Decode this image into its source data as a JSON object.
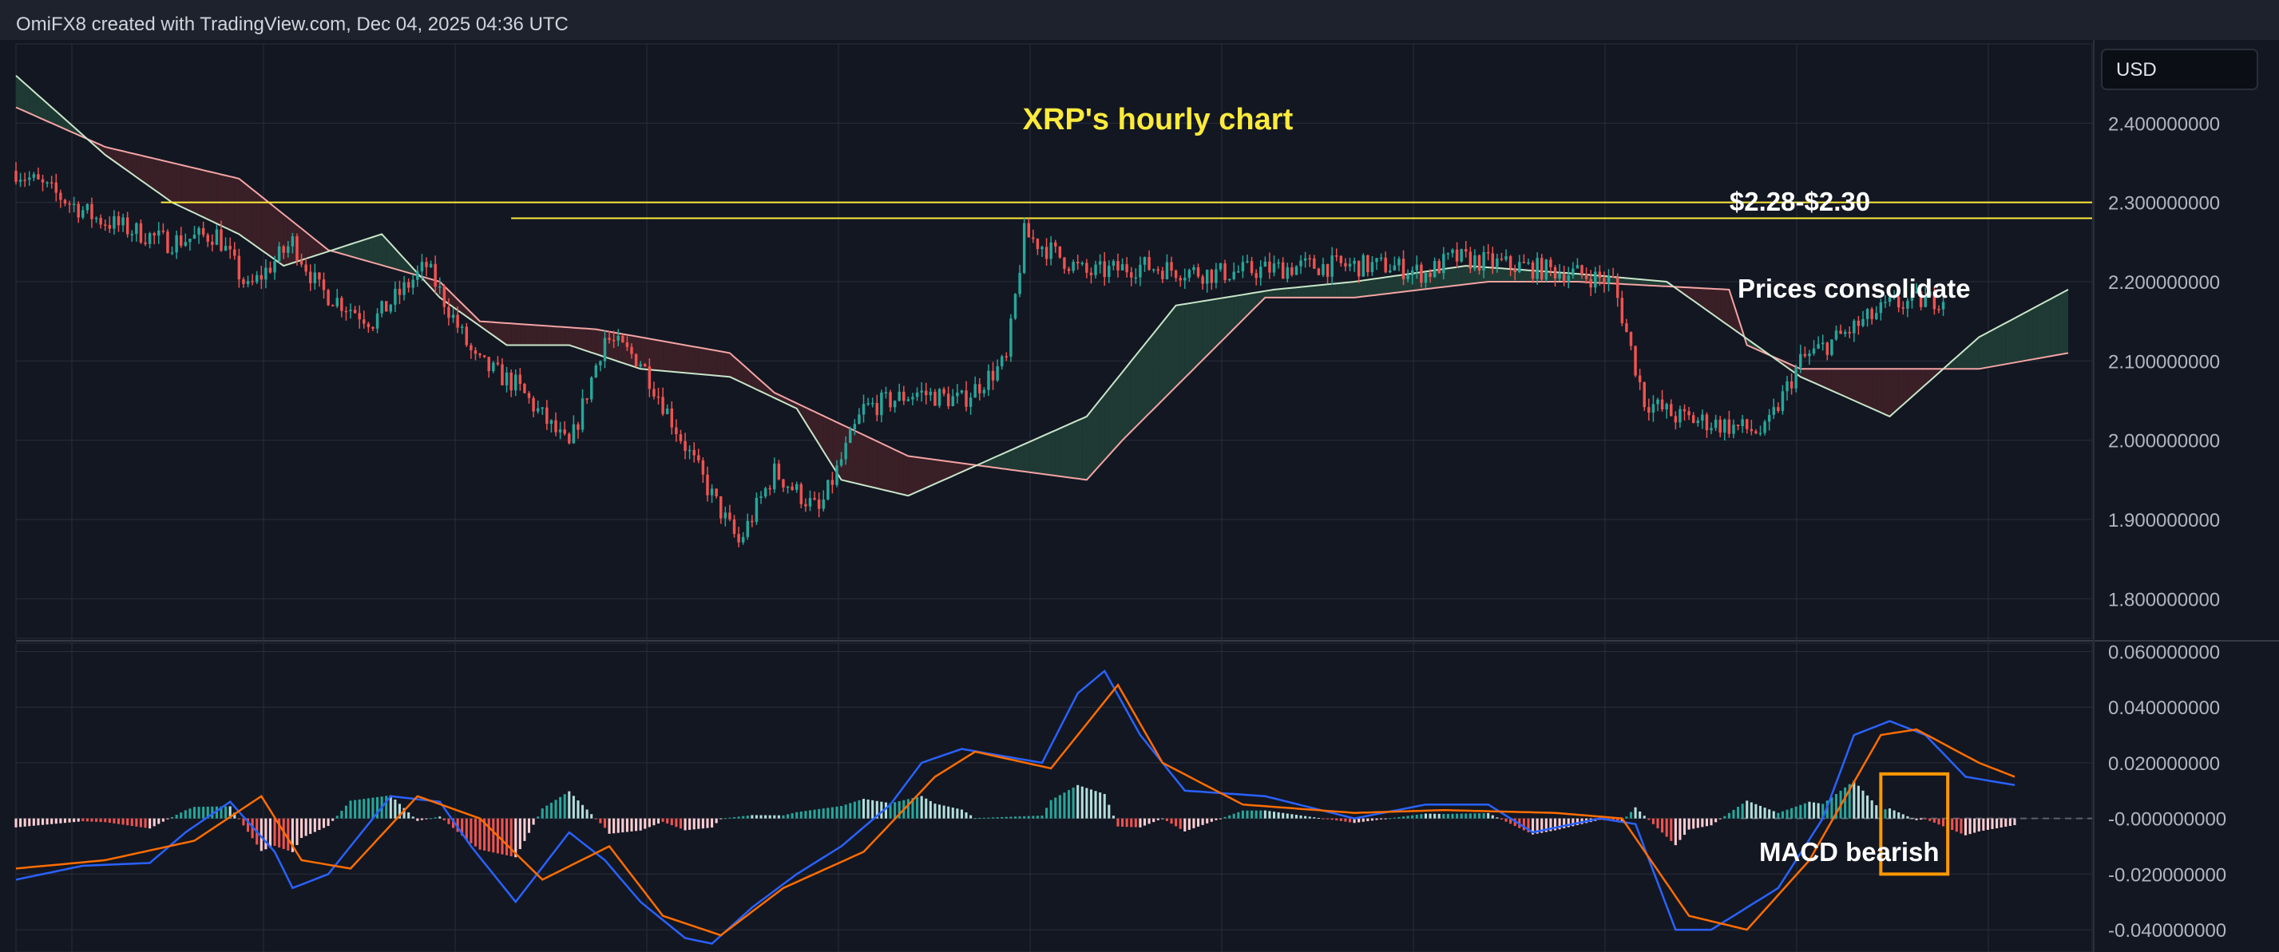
{
  "header": {
    "credit": "OmiFX8 created with TradingView.com, Dec 04, 2025 04:36 UTC"
  },
  "currency_button": {
    "label": "USD"
  },
  "colors": {
    "background": "#131722",
    "header_bg": "#1e222d",
    "grid": "#2a2e39",
    "up": "#26a69a",
    "down": "#ef5350",
    "cloud_bull": "#1f3a34",
    "cloud_bear": "#3a1f27",
    "span_a": "#c8e6c9",
    "span_b": "#f4a4a4",
    "macd": "#2962ff",
    "signal": "#ff6d00",
    "annotation_title": "#ffeb3b",
    "resistance": "#ffeb3b",
    "highlight_box": "#ff9800"
  },
  "chart_data": [
    {
      "type": "candlestick",
      "title": "XRP's hourly chart",
      "xlabel": "",
      "ylabel": "",
      "ylim": [
        1.75,
        2.5
      ],
      "yticks": [
        "2.400000000",
        "2.300000000",
        "2.200000000",
        "2.100000000",
        "2.000000000",
        "1.900000000",
        "1.800000000"
      ],
      "grid": true,
      "overlays": [
        "ichimoku-cloud"
      ],
      "resistance_levels": [
        2.28,
        2.3
      ],
      "annotations": [
        {
          "text": "$2.28-$2.30"
        },
        {
          "text": "Prices consolidate"
        }
      ],
      "price_path": [
        [
          0,
          2.34
        ],
        [
          18,
          2.28
        ],
        [
          34,
          2.25
        ],
        [
          45,
          2.26
        ],
        [
          52,
          2.19
        ],
        [
          62,
          2.25
        ],
        [
          68,
          2.19
        ],
        [
          80,
          2.15
        ],
        [
          92,
          2.22
        ],
        [
          103,
          2.1
        ],
        [
          112,
          2.07
        ],
        [
          124,
          1.99
        ],
        [
          132,
          2.13
        ],
        [
          140,
          2.1
        ],
        [
          155,
          1.94
        ],
        [
          162,
          1.87
        ],
        [
          170,
          1.96
        ],
        [
          180,
          1.91
        ],
        [
          190,
          2.04
        ],
        [
          202,
          2.06
        ],
        [
          212,
          2.05
        ],
        [
          222,
          2.1
        ],
        [
          226,
          2.26
        ],
        [
          240,
          2.21
        ],
        [
          252,
          2.22
        ],
        [
          268,
          2.21
        ],
        [
          290,
          2.22
        ],
        [
          308,
          2.22
        ],
        [
          316,
          2.21
        ],
        [
          322,
          2.23
        ],
        [
          350,
          2.21
        ],
        [
          358,
          2.2
        ],
        [
          365,
          2.05
        ],
        [
          372,
          2.03
        ],
        [
          392,
          2.01
        ],
        [
          400,
          2.1
        ],
        [
          420,
          2.17
        ],
        [
          432,
          2.18
        ]
      ],
      "cloud": {
        "span_a": [
          [
            0,
            2.46
          ],
          [
            20,
            2.36
          ],
          [
            35,
            2.3
          ],
          [
            50,
            2.26
          ],
          [
            60,
            2.22
          ],
          [
            82,
            2.26
          ],
          [
            95,
            2.18
          ],
          [
            110,
            2.12
          ],
          [
            124,
            2.12
          ],
          [
            140,
            2.09
          ],
          [
            160,
            2.08
          ],
          [
            175,
            2.04
          ],
          [
            185,
            1.95
          ],
          [
            200,
            1.93
          ],
          [
            220,
            1.98
          ],
          [
            240,
            2.03
          ],
          [
            260,
            2.17
          ],
          [
            282,
            2.19
          ],
          [
            300,
            2.2
          ],
          [
            325,
            2.22
          ],
          [
            350,
            2.21
          ],
          [
            370,
            2.2
          ],
          [
            385,
            2.14
          ],
          [
            400,
            2.08
          ],
          [
            420,
            2.03
          ],
          [
            440,
            2.13
          ],
          [
            460,
            2.19
          ]
        ],
        "span_b": [
          [
            0,
            2.42
          ],
          [
            20,
            2.37
          ],
          [
            50,
            2.33
          ],
          [
            70,
            2.24
          ],
          [
            95,
            2.2
          ],
          [
            104,
            2.15
          ],
          [
            130,
            2.14
          ],
          [
            160,
            2.11
          ],
          [
            170,
            2.06
          ],
          [
            200,
            1.98
          ],
          [
            240,
            1.95
          ],
          [
            248,
            2.0
          ],
          [
            280,
            2.18
          ],
          [
            300,
            2.18
          ],
          [
            330,
            2.2
          ],
          [
            350,
            2.2
          ],
          [
            384,
            2.19
          ],
          [
            388,
            2.12
          ],
          [
            400,
            2.09
          ],
          [
            420,
            2.09
          ],
          [
            440,
            2.09
          ],
          [
            460,
            2.11
          ]
        ]
      }
    },
    {
      "type": "macd",
      "ylim": [
        -0.048,
        0.063
      ],
      "yticks": [
        "0.060000000",
        "0.040000000",
        "0.020000000",
        "-0.000000000",
        "-0.020000000",
        "-0.040000000"
      ],
      "annotations": [
        {
          "text": "MACD bearish"
        }
      ],
      "macd": [
        [
          0,
          -0.022
        ],
        [
          15,
          -0.017
        ],
        [
          30,
          -0.016
        ],
        [
          38,
          -0.005
        ],
        [
          48,
          0.006
        ],
        [
          58,
          -0.012
        ],
        [
          62,
          -0.025
        ],
        [
          70,
          -0.02
        ],
        [
          84,
          0.008
        ],
        [
          95,
          0.006
        ],
        [
          102,
          -0.01
        ],
        [
          112,
          -0.03
        ],
        [
          124,
          -0.005
        ],
        [
          132,
          -0.015
        ],
        [
          140,
          -0.03
        ],
        [
          150,
          -0.043
        ],
        [
          156,
          -0.045
        ],
        [
          165,
          -0.032
        ],
        [
          175,
          -0.02
        ],
        [
          185,
          -0.01
        ],
        [
          196,
          0.005
        ],
        [
          203,
          0.02
        ],
        [
          212,
          0.025
        ],
        [
          230,
          0.02
        ],
        [
          238,
          0.045
        ],
        [
          244,
          0.053
        ],
        [
          252,
          0.03
        ],
        [
          262,
          0.01
        ],
        [
          280,
          0.008
        ],
        [
          300,
          0.0
        ],
        [
          316,
          0.005
        ],
        [
          330,
          0.005
        ],
        [
          340,
          -0.005
        ],
        [
          355,
          0.0
        ],
        [
          363,
          -0.002
        ],
        [
          372,
          -0.04
        ],
        [
          380,
          -0.04
        ],
        [
          395,
          -0.025
        ],
        [
          405,
          0.0
        ],
        [
          412,
          0.03
        ],
        [
          420,
          0.035
        ],
        [
          428,
          0.03
        ],
        [
          437,
          0.015
        ],
        [
          448,
          0.012
        ]
      ],
      "signal": [
        [
          0,
          -0.018
        ],
        [
          20,
          -0.015
        ],
        [
          40,
          -0.008
        ],
        [
          55,
          0.008
        ],
        [
          64,
          -0.015
        ],
        [
          75,
          -0.018
        ],
        [
          90,
          0.008
        ],
        [
          104,
          0.0
        ],
        [
          118,
          -0.022
        ],
        [
          133,
          -0.01
        ],
        [
          145,
          -0.035
        ],
        [
          158,
          -0.042
        ],
        [
          172,
          -0.025
        ],
        [
          190,
          -0.012
        ],
        [
          206,
          0.015
        ],
        [
          215,
          0.024
        ],
        [
          232,
          0.018
        ],
        [
          247,
          0.048
        ],
        [
          257,
          0.02
        ],
        [
          275,
          0.005
        ],
        [
          300,
          0.002
        ],
        [
          320,
          0.003
        ],
        [
          345,
          0.002
        ],
        [
          360,
          0.0
        ],
        [
          375,
          -0.035
        ],
        [
          388,
          -0.04
        ],
        [
          402,
          -0.015
        ],
        [
          418,
          0.03
        ],
        [
          426,
          0.032
        ],
        [
          440,
          0.02
        ],
        [
          448,
          0.015
        ]
      ]
    }
  ]
}
